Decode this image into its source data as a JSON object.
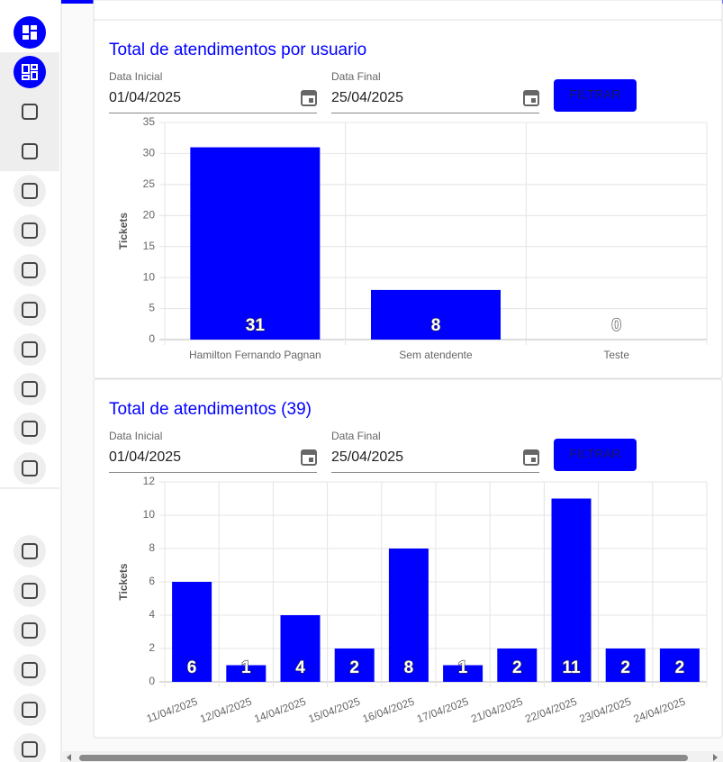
{
  "chart_data": [
    {
      "type": "bar",
      "title": "Total de atendimentos por usuario",
      "y_label": "Tickets",
      "categories": [
        "Hamilton Fernando Pagnan",
        "Sem atendente",
        "Teste"
      ],
      "values": [
        31,
        8,
        0
      ],
      "color": "#0000ff",
      "ylim": [
        0,
        35
      ],
      "yticks": [
        0,
        5,
        10,
        15,
        20,
        25,
        30,
        35
      ],
      "grid": true,
      "rotate_labels": false
    },
    {
      "type": "bar",
      "title": "Total de atendimentos (39)",
      "y_label": "Tickets",
      "categories": [
        "11/04/2025",
        "12/04/2025",
        "14/04/2025",
        "15/04/2025",
        "16/04/2025",
        "17/04/2025",
        "21/04/2025",
        "22/04/2025",
        "23/04/2025",
        "24/04/2025"
      ],
      "values": [
        6,
        1,
        4,
        2,
        8,
        1,
        2,
        11,
        2,
        2
      ],
      "color": "#0000ff",
      "ylim": [
        0,
        12
      ],
      "yticks": [
        0,
        2,
        4,
        6,
        8,
        10,
        12
      ],
      "grid": true,
      "rotate_labels": true
    }
  ],
  "filters": [
    {
      "start_label": "Data Inicial",
      "start_value": "01/04/2025",
      "end_label": "Data Final",
      "end_value": "25/04/2025",
      "button": "FILTRAR"
    },
    {
      "start_label": "Data Inicial",
      "start_value": "01/04/2025",
      "end_label": "Data Final",
      "end_value": "25/04/2025",
      "button": "FILTRAR"
    }
  ]
}
